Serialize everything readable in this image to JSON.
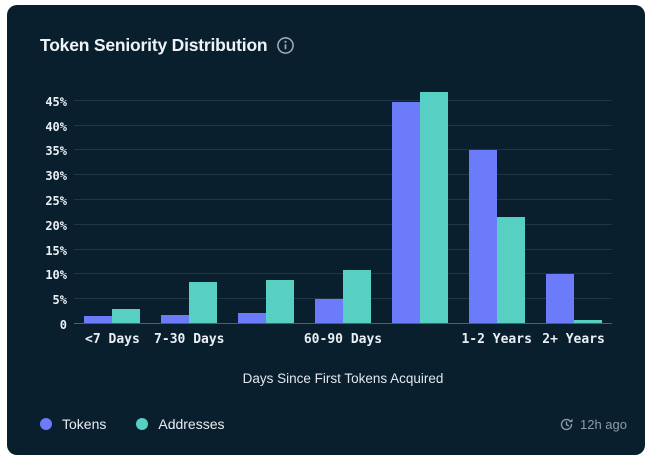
{
  "header": {
    "title": "Token Seniority Distribution"
  },
  "chart_data": {
    "type": "bar",
    "title": "Token Seniority Distribution",
    "xlabel": "Days Since First Tokens Acquired",
    "ylabel": "",
    "categories": [
      "<7 Days",
      "7-30 Days",
      "",
      "60-90 Days",
      "",
      "1-2 Years",
      "2+ Years"
    ],
    "series": [
      {
        "name": "Tokens",
        "color": "#6c7bfa",
        "values": [
          1.5,
          1.7,
          2.1,
          4.8,
          44.5,
          34.8,
          9.9
        ]
      },
      {
        "name": "Addresses",
        "color": "#57cfc3",
        "values": [
          2.9,
          8.3,
          8.7,
          10.7,
          46.5,
          21.4,
          0.6
        ]
      }
    ],
    "y_ticks": [
      "0",
      "5%",
      "10%",
      "15%",
      "20%",
      "25%",
      "30%",
      "35%",
      "40%",
      "45%"
    ],
    "ylim": [
      0,
      48
    ],
    "grid": "horizontal",
    "legend_position": "bottom-left",
    "background_color": "#0a1f2e"
  },
  "footer": {
    "updated": "12h ago"
  },
  "icons": {
    "info": "info-icon",
    "history": "history-clock-icon"
  }
}
